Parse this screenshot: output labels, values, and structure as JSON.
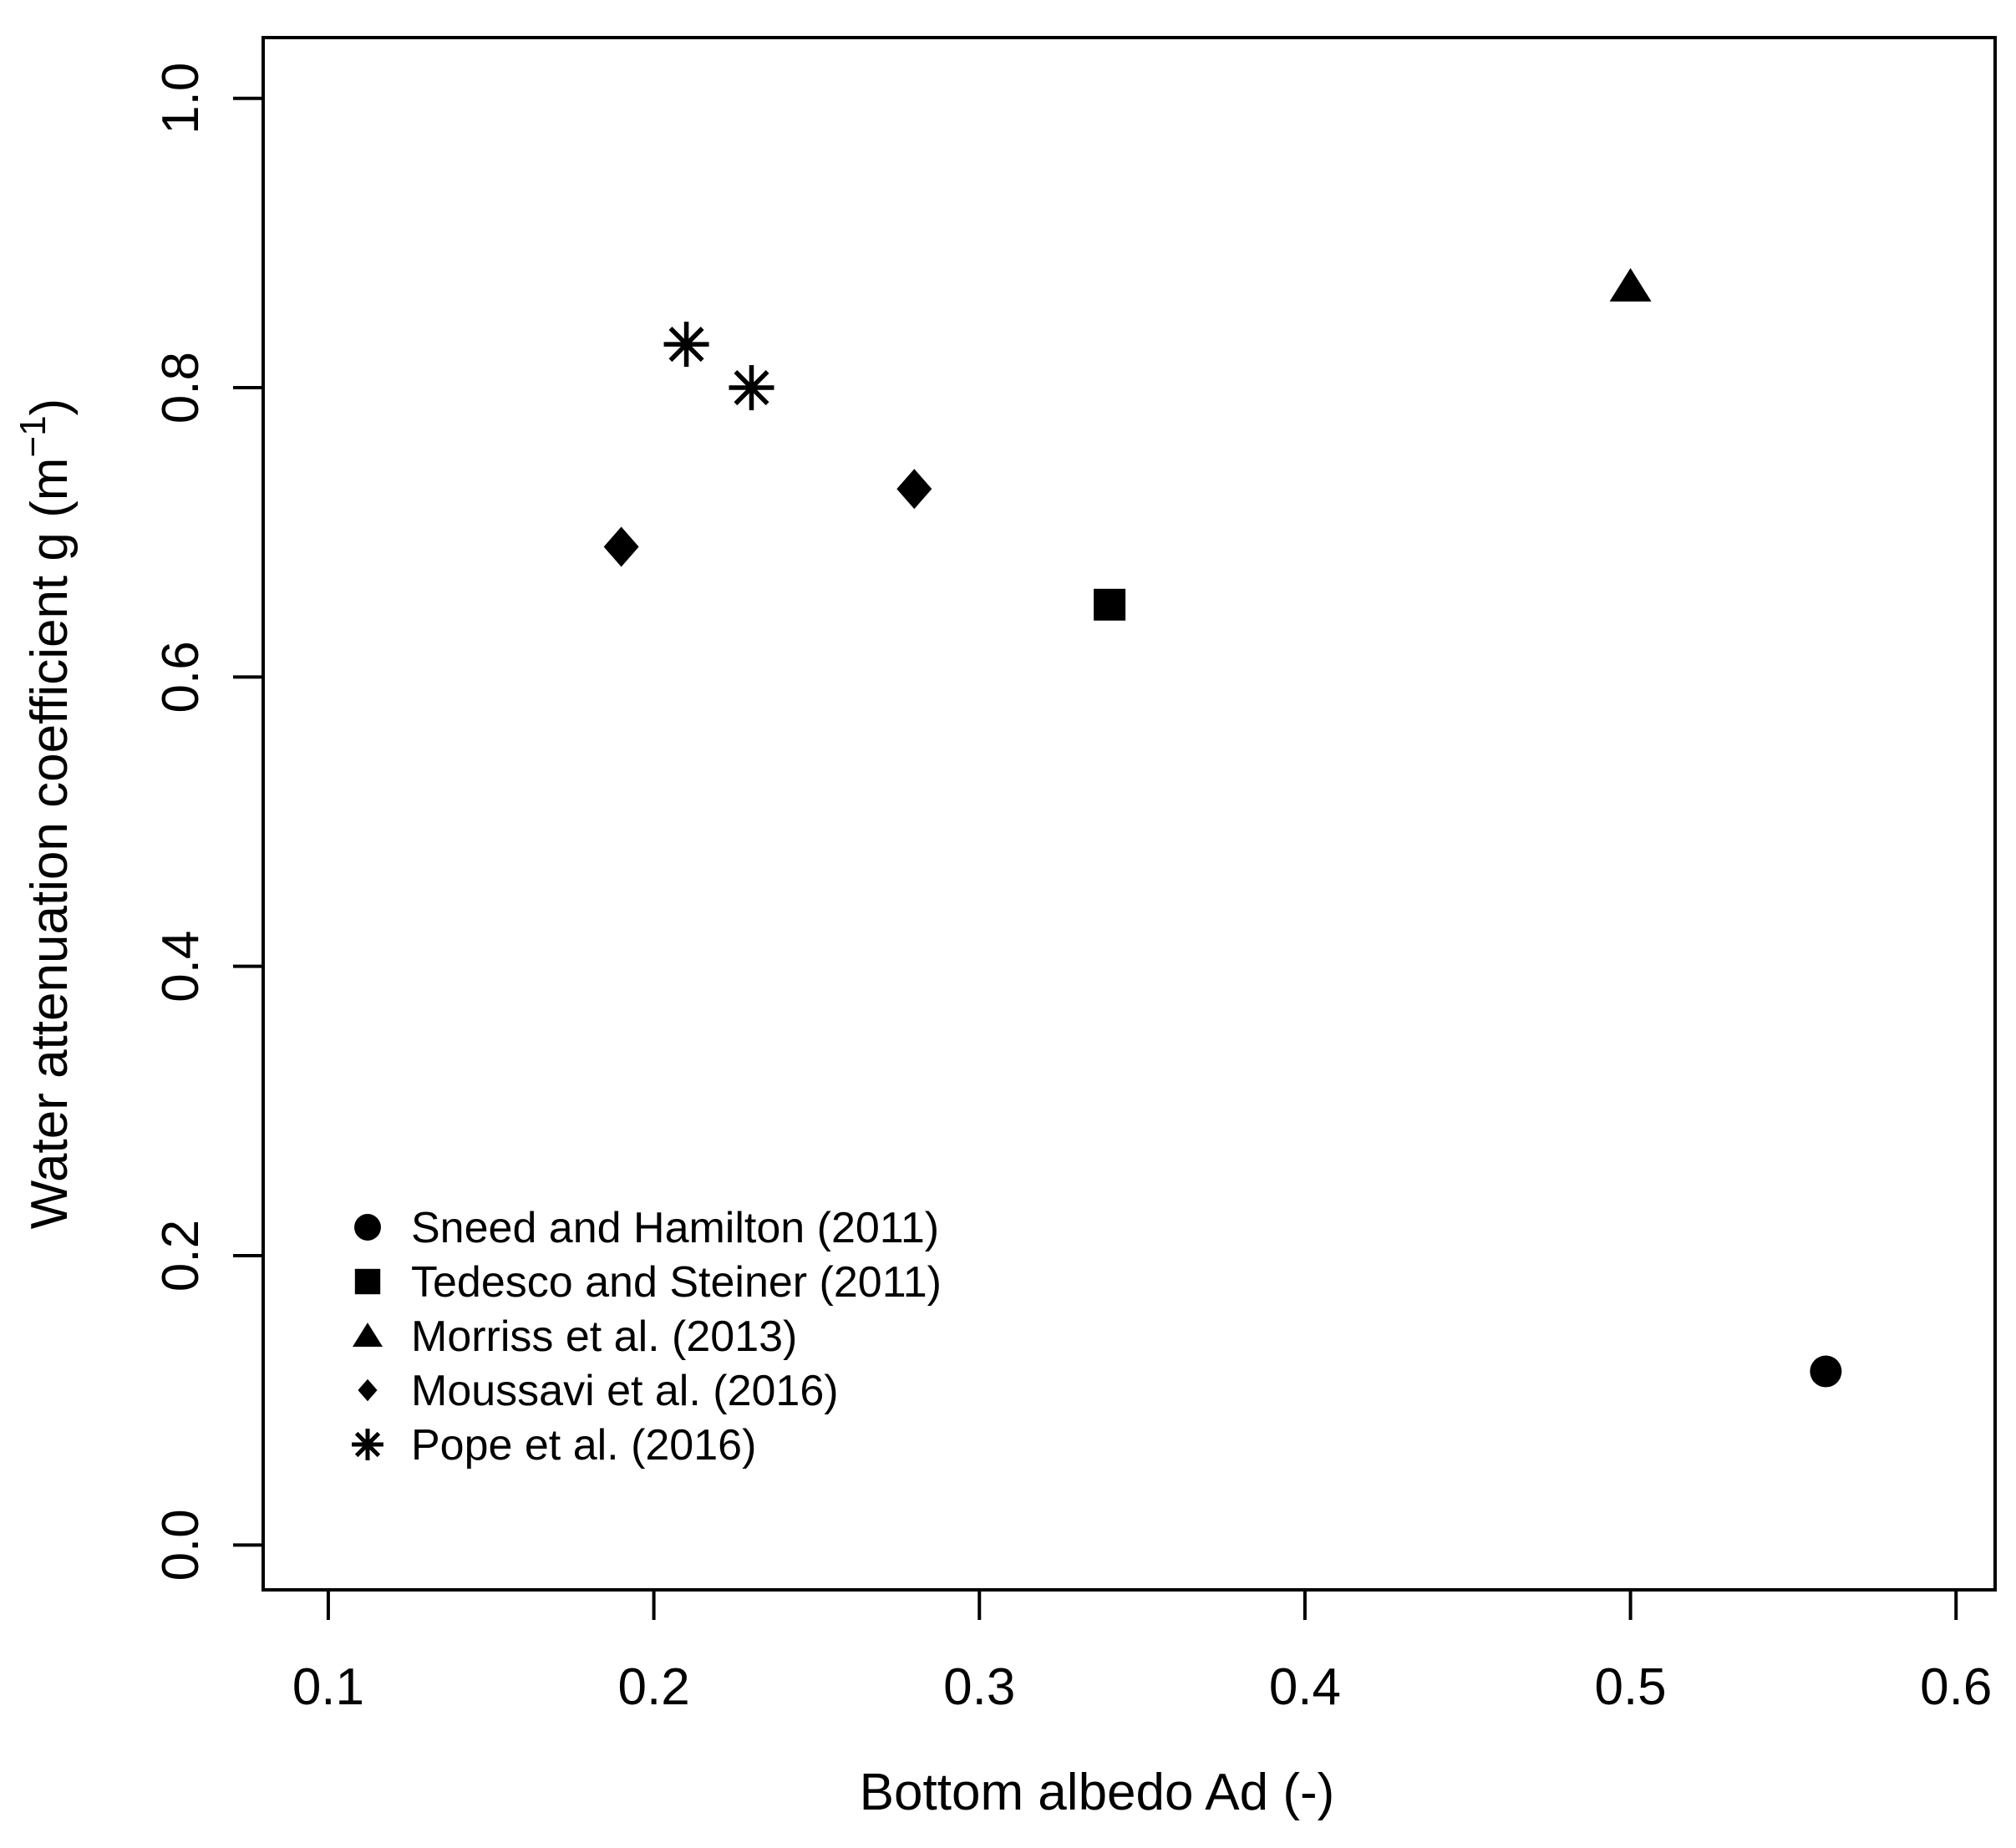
{
  "chart_data": {
    "type": "scatter",
    "title": "",
    "xlabel": "Bottom albedo Ad (-)",
    "ylabel": "Water attenuation coefficient g (m−1)",
    "ylabel_parts": {
      "pre": "Water attenuation coefficient g (m",
      "sup": "−1",
      "post": ")"
    },
    "xlim": [
      0.08,
      0.612
    ],
    "ylim": [
      -0.031,
      1.042
    ],
    "x_ticks": [
      0.1,
      0.2,
      0.3,
      0.4,
      0.5,
      0.6
    ],
    "x_tick_labels": [
      "0.1",
      "0.2",
      "0.3",
      "0.4",
      "0.5",
      "0.6"
    ],
    "y_ticks": [
      0.0,
      0.2,
      0.4,
      0.6,
      0.8,
      1.0
    ],
    "y_tick_labels": [
      "0.0",
      "0.2",
      "0.4",
      "0.6",
      "0.8",
      "1.0"
    ],
    "grid": false,
    "legend_position": "inside-bottom-left",
    "marker_color": "#000000",
    "background_color": "#ffffff",
    "axis_color": "#000000",
    "series": [
      {
        "name": "Sneed and Hamilton (2011)",
        "marker": "circle",
        "points": [
          {
            "x": 0.56,
            "y": 0.12
          }
        ]
      },
      {
        "name": "Tedesco and Steiner (2011)",
        "marker": "square",
        "points": [
          {
            "x": 0.34,
            "y": 0.65
          }
        ]
      },
      {
        "name": "Morriss et al. (2013)",
        "marker": "triangle",
        "points": [
          {
            "x": 0.5,
            "y": 0.87
          }
        ]
      },
      {
        "name": "Moussavi et al. (2016)",
        "marker": "diamond",
        "points": [
          {
            "x": 0.19,
            "y": 0.69
          },
          {
            "x": 0.28,
            "y": 0.73
          }
        ]
      },
      {
        "name": "Pope et al. (2016)",
        "marker": "asterisk",
        "points": [
          {
            "x": 0.21,
            "y": 0.83
          },
          {
            "x": 0.23,
            "y": 0.8
          }
        ]
      }
    ]
  }
}
